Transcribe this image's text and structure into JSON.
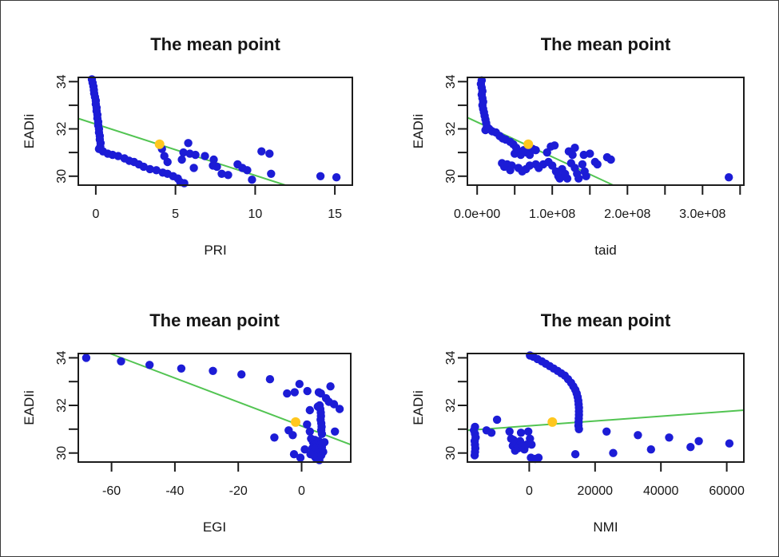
{
  "colors": {
    "point_blue": "#1c1cd6",
    "trend_green": "#52c452",
    "mean_orange": "#ffc71f",
    "frame": "#1c1c1c",
    "text": "#161616",
    "background": "#ffffff",
    "border": "#3a3a3a"
  },
  "chart_data": [
    {
      "id": "pri",
      "type": "scatter",
      "title": "The mean point",
      "xlabel": "PRI",
      "ylabel": "EADIi",
      "xlim": [
        -1.1,
        16.1
      ],
      "ylim": [
        29.62,
        34.18
      ],
      "grid": false,
      "legend": null,
      "x_ticks": [
        {
          "v": 0,
          "label": "0"
        },
        {
          "v": 5,
          "label": "5"
        },
        {
          "v": 10,
          "label": "10"
        },
        {
          "v": 15,
          "label": "15"
        }
      ],
      "y_ticks": [
        {
          "v": 30,
          "label": "30"
        },
        {
          "v": 31,
          "label": ""
        },
        {
          "v": 32,
          "label": "32"
        },
        {
          "v": 33,
          "label": ""
        },
        {
          "v": 34,
          "label": "34"
        }
      ],
      "trend_line": {
        "x1": -1.1,
        "y1": 32.44,
        "x2": 11.9,
        "y2": 29.62
      },
      "mean_point": [
        4.0,
        31.35
      ],
      "points": [
        [
          -0.25,
          34.1
        ],
        [
          -0.2,
          33.95
        ],
        [
          -0.15,
          33.8
        ],
        [
          -0.12,
          33.65
        ],
        [
          -0.1,
          33.5
        ],
        [
          -0.05,
          33.35
        ],
        [
          0,
          33.2
        ],
        [
          0,
          33.05
        ],
        [
          0.05,
          32.9
        ],
        [
          0.05,
          32.75
        ],
        [
          0.1,
          32.6
        ],
        [
          0.1,
          32.45
        ],
        [
          0.15,
          32.3
        ],
        [
          0.15,
          32.15
        ],
        [
          0.2,
          32.0
        ],
        [
          0.2,
          31.85
        ],
        [
          0.25,
          31.7
        ],
        [
          0.25,
          31.55
        ],
        [
          0.3,
          31.4
        ],
        [
          0.28,
          31.25
        ],
        [
          0.2,
          31.15
        ],
        [
          0.45,
          31.05
        ],
        [
          0.75,
          30.95
        ],
        [
          1.05,
          30.9
        ],
        [
          1.4,
          30.85
        ],
        [
          1.8,
          30.75
        ],
        [
          2.1,
          30.65
        ],
        [
          2.4,
          30.6
        ],
        [
          2.7,
          30.5
        ],
        [
          3.0,
          30.4
        ],
        [
          3.4,
          30.3
        ],
        [
          3.8,
          30.25
        ],
        [
          4.2,
          30.15
        ],
        [
          4.5,
          30.1
        ],
        [
          4.85,
          30.0
        ],
        [
          5.15,
          29.9
        ],
        [
          5.3,
          29.75
        ],
        [
          5.55,
          29.7
        ],
        [
          4.15,
          31.15
        ],
        [
          4.3,
          30.85
        ],
        [
          4.5,
          30.6
        ],
        [
          5.5,
          31.0
        ],
        [
          5.8,
          31.4
        ],
        [
          5.4,
          30.7
        ],
        [
          5.9,
          30.95
        ],
        [
          6.25,
          30.9
        ],
        [
          6.15,
          30.35
        ],
        [
          6.85,
          30.85
        ],
        [
          7.4,
          30.7
        ],
        [
          7.35,
          30.45
        ],
        [
          7.6,
          30.4
        ],
        [
          7.9,
          30.1
        ],
        [
          8.3,
          30.05
        ],
        [
          8.9,
          30.5
        ],
        [
          9.2,
          30.35
        ],
        [
          9.5,
          30.25
        ],
        [
          9.8,
          29.85
        ],
        [
          10.4,
          31.05
        ],
        [
          10.9,
          30.95
        ],
        [
          11.0,
          30.1
        ],
        [
          14.1,
          30.0
        ],
        [
          15.1,
          29.95
        ]
      ]
    },
    {
      "id": "taid",
      "type": "scatter",
      "title": "The mean point",
      "xlabel": "taid",
      "ylabel": "EADIi",
      "xlim": [
        -13000000,
        355000000
      ],
      "ylim": [
        29.62,
        34.18
      ],
      "grid": false,
      "legend": null,
      "x_ticks": [
        {
          "v": 0,
          "label": "0.0e+00"
        },
        {
          "v": 50000000,
          "label": ""
        },
        {
          "v": 100000000,
          "label": "1.0e+08"
        },
        {
          "v": 150000000,
          "label": ""
        },
        {
          "v": 200000000,
          "label": "2.0e+08"
        },
        {
          "v": 250000000,
          "label": ""
        },
        {
          "v": 300000000,
          "label": "3.0e+08"
        },
        {
          "v": 350000000,
          "label": ""
        }
      ],
      "y_ticks": [
        {
          "v": 30,
          "label": "30"
        },
        {
          "v": 31,
          "label": ""
        },
        {
          "v": 32,
          "label": "32"
        },
        {
          "v": 33,
          "label": ""
        },
        {
          "v": 34,
          "label": "34"
        }
      ],
      "trend_line": {
        "x1": -13000000,
        "y1": 32.48,
        "x2": 181000000,
        "y2": 29.62
      },
      "mean_point": [
        68000000,
        31.35
      ],
      "points": [
        [
          6000000,
          34.05
        ],
        [
          5000000,
          33.9
        ],
        [
          6000000,
          33.75
        ],
        [
          7000000,
          33.6
        ],
        [
          6000000,
          33.45
        ],
        [
          7000000,
          33.3
        ],
        [
          8000000,
          33.15
        ],
        [
          7000000,
          33.0
        ],
        [
          8000000,
          32.85
        ],
        [
          9000000,
          32.7
        ],
        [
          10000000,
          32.55
        ],
        [
          11000000,
          32.4
        ],
        [
          12000000,
          32.25
        ],
        [
          13000000,
          32.1
        ],
        [
          11000000,
          31.95
        ],
        [
          16000000,
          32.0
        ],
        [
          20000000,
          31.9
        ],
        [
          25000000,
          31.85
        ],
        [
          30000000,
          31.7
        ],
        [
          34000000,
          31.6
        ],
        [
          38000000,
          31.55
        ],
        [
          44000000,
          31.45
        ],
        [
          48000000,
          31.35
        ],
        [
          52000000,
          31.2
        ],
        [
          55000000,
          31.05
        ],
        [
          50000000,
          30.95
        ],
        [
          58000000,
          30.9
        ],
        [
          62000000,
          31.1
        ],
        [
          66000000,
          31.0
        ],
        [
          70000000,
          30.9
        ],
        [
          74000000,
          31.15
        ],
        [
          78000000,
          31.1
        ],
        [
          33000000,
          30.55
        ],
        [
          36000000,
          30.4
        ],
        [
          40000000,
          30.5
        ],
        [
          43000000,
          30.35
        ],
        [
          46000000,
          30.45
        ],
        [
          44000000,
          30.25
        ],
        [
          55000000,
          30.35
        ],
        [
          60000000,
          30.2
        ],
        [
          65000000,
          30.3
        ],
        [
          70000000,
          30.45
        ],
        [
          78000000,
          30.5
        ],
        [
          82000000,
          30.35
        ],
        [
          88000000,
          30.5
        ],
        [
          93000000,
          31.0
        ],
        [
          98000000,
          31.25
        ],
        [
          103000000,
          31.3
        ],
        [
          95000000,
          30.6
        ],
        [
          100000000,
          30.45
        ],
        [
          105000000,
          30.2
        ],
        [
          108000000,
          30.0
        ],
        [
          110000000,
          29.9
        ],
        [
          113000000,
          30.3
        ],
        [
          117000000,
          30.1
        ],
        [
          120000000,
          29.9
        ],
        [
          122000000,
          31.05
        ],
        [
          127000000,
          30.9
        ],
        [
          125000000,
          30.55
        ],
        [
          130000000,
          30.35
        ],
        [
          133000000,
          30.1
        ],
        [
          135000000,
          29.9
        ],
        [
          140000000,
          30.5
        ],
        [
          143000000,
          30.2
        ],
        [
          145000000,
          30.0
        ],
        [
          130000000,
          31.2
        ],
        [
          142000000,
          30.9
        ],
        [
          150000000,
          30.95
        ],
        [
          157000000,
          30.6
        ],
        [
          160000000,
          30.5
        ],
        [
          173000000,
          30.8
        ],
        [
          178000000,
          30.7
        ],
        [
          335000000,
          29.95
        ]
      ]
    },
    {
      "id": "egi",
      "type": "scatter",
      "title": "The mean point",
      "xlabel": "EGI",
      "ylabel": "EADIi",
      "xlim": [
        -70.5,
        15.5
      ],
      "ylim": [
        29.62,
        34.18
      ],
      "grid": false,
      "legend": null,
      "x_ticks": [
        {
          "v": -60,
          "label": "-60"
        },
        {
          "v": -40,
          "label": "-40"
        },
        {
          "v": -20,
          "label": "-20"
        },
        {
          "v": 0,
          "label": "0"
        }
      ],
      "y_ticks": [
        {
          "v": 30,
          "label": "30"
        },
        {
          "v": 31,
          "label": ""
        },
        {
          "v": 32,
          "label": "32"
        },
        {
          "v": 33,
          "label": ""
        },
        {
          "v": 34,
          "label": "34"
        }
      ],
      "trend_line": {
        "x1": -60.5,
        "y1": 34.18,
        "x2": 15.5,
        "y2": 30.35
      },
      "mean_point": [
        -1.9,
        31.3
      ],
      "points": [
        [
          -68,
          34.0
        ],
        [
          -57,
          33.85
        ],
        [
          -48,
          33.7
        ],
        [
          -38,
          33.55
        ],
        [
          -28,
          33.45
        ],
        [
          -19,
          33.3
        ],
        [
          -10,
          33.1
        ],
        [
          -4.6,
          32.5
        ],
        [
          -2.2,
          32.55
        ],
        [
          -0.7,
          32.9
        ],
        [
          1.8,
          32.6
        ],
        [
          5.4,
          32.55
        ],
        [
          6.1,
          32.5
        ],
        [
          7.7,
          32.3
        ],
        [
          9.1,
          32.8
        ],
        [
          10.2,
          32.05
        ],
        [
          8.6,
          32.15
        ],
        [
          12.0,
          31.85
        ],
        [
          2.6,
          31.8
        ],
        [
          5.1,
          31.95
        ],
        [
          5.7,
          32.0
        ],
        [
          5.9,
          31.85
        ],
        [
          6.05,
          31.7
        ],
        [
          6.1,
          31.55
        ],
        [
          6.0,
          31.4
        ],
        [
          6.2,
          31.25
        ],
        [
          6.3,
          31.1
        ],
        [
          6.2,
          30.95
        ],
        [
          6.4,
          30.8
        ],
        [
          -4.1,
          30.95
        ],
        [
          -2.8,
          30.75
        ],
        [
          1.7,
          31.2
        ],
        [
          2.6,
          30.9
        ],
        [
          10.5,
          30.9
        ],
        [
          -8.6,
          30.65
        ],
        [
          3.0,
          30.6
        ],
        [
          3.6,
          30.45
        ],
        [
          4.2,
          30.55
        ],
        [
          4.8,
          30.4
        ],
        [
          5.4,
          30.5
        ],
        [
          6.0,
          30.35
        ],
        [
          3.4,
          30.2
        ],
        [
          4.0,
          30.1
        ],
        [
          4.6,
          30.2
        ],
        [
          5.2,
          30.05
        ],
        [
          5.8,
          30.15
        ],
        [
          6.4,
          30.25
        ],
        [
          3.8,
          29.9
        ],
        [
          4.4,
          29.8
        ],
        [
          5.0,
          29.85
        ],
        [
          5.6,
          29.7
        ],
        [
          6.2,
          29.9
        ],
        [
          2.8,
          29.95
        ],
        [
          6.8,
          30.05
        ],
        [
          7.2,
          30.45
        ],
        [
          -2.4,
          29.95
        ],
        [
          -0.4,
          29.8
        ],
        [
          1.0,
          30.15
        ]
      ]
    },
    {
      "id": "nmi",
      "type": "scatter",
      "title": "The mean point",
      "xlabel": "NMI",
      "ylabel": "EADIi",
      "xlim": [
        -18800,
        65200
      ],
      "ylim": [
        29.62,
        34.18
      ],
      "grid": false,
      "legend": null,
      "x_ticks": [
        {
          "v": 0,
          "label": "0"
        },
        {
          "v": 20000,
          "label": "20000"
        },
        {
          "v": 40000,
          "label": "40000"
        },
        {
          "v": 60000,
          "label": "60000"
        }
      ],
      "y_ticks": [
        {
          "v": 30,
          "label": "30"
        },
        {
          "v": 31,
          "label": ""
        },
        {
          "v": 32,
          "label": "32"
        },
        {
          "v": 33,
          "label": ""
        },
        {
          "v": 34,
          "label": "34"
        }
      ],
      "trend_line": {
        "x1": -18800,
        "y1": 30.95,
        "x2": 65200,
        "y2": 31.8
      },
      "mean_point": [
        7000,
        31.3
      ],
      "points": [
        [
          200,
          34.1
        ],
        [
          1200,
          34.05
        ],
        [
          2500,
          33.95
        ],
        [
          3800,
          33.85
        ],
        [
          5000,
          33.75
        ],
        [
          6200,
          33.65
        ],
        [
          7400,
          33.55
        ],
        [
          8600,
          33.45
        ],
        [
          9700,
          33.35
        ],
        [
          10800,
          33.25
        ],
        [
          11800,
          33.1
        ],
        [
          12700,
          32.95
        ],
        [
          13400,
          32.8
        ],
        [
          14000,
          32.65
        ],
        [
          14400,
          32.5
        ],
        [
          14700,
          32.35
        ],
        [
          14900,
          32.2
        ],
        [
          15000,
          32.05
        ],
        [
          15100,
          31.9
        ],
        [
          15100,
          31.75
        ],
        [
          15100,
          31.6
        ],
        [
          15050,
          31.45
        ],
        [
          15000,
          31.3
        ],
        [
          14950,
          31.15
        ],
        [
          15100,
          31.0
        ],
        [
          -16500,
          31.1
        ],
        [
          -16800,
          30.95
        ],
        [
          -16500,
          30.8
        ],
        [
          -16300,
          30.65
        ],
        [
          -16600,
          30.5
        ],
        [
          -16500,
          30.35
        ],
        [
          -16400,
          30.2
        ],
        [
          -16500,
          30.05
        ],
        [
          -16600,
          29.9
        ],
        [
          -13000,
          30.95
        ],
        [
          -11500,
          30.85
        ],
        [
          -9800,
          31.4
        ],
        [
          -6000,
          30.9
        ],
        [
          -5500,
          30.6
        ],
        [
          -5000,
          30.3
        ],
        [
          -4300,
          30.1
        ],
        [
          -3800,
          30.35
        ],
        [
          -3300,
          30.2
        ],
        [
          -2800,
          30.5
        ],
        [
          -2500,
          30.85
        ],
        [
          -2000,
          30.3
        ],
        [
          -1500,
          30.15
        ],
        [
          -800,
          30.35
        ],
        [
          -300,
          30.9
        ],
        [
          200,
          30.6
        ],
        [
          700,
          30.35
        ],
        [
          -4800,
          30.55
        ],
        [
          500,
          29.8
        ],
        [
          1800,
          29.75
        ],
        [
          2800,
          29.8
        ],
        [
          14000,
          29.95
        ],
        [
          23500,
          30.9
        ],
        [
          25500,
          30.0
        ],
        [
          33000,
          30.75
        ],
        [
          37000,
          30.15
        ],
        [
          42500,
          30.65
        ],
        [
          49000,
          30.25
        ],
        [
          51500,
          30.5
        ],
        [
          60800,
          30.4
        ]
      ]
    }
  ]
}
